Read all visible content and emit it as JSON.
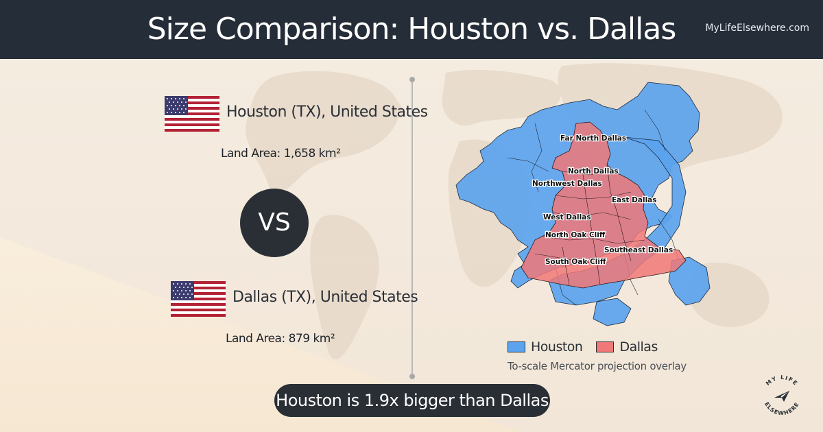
{
  "header": {
    "title": "Size Comparison: Houston vs. Dallas",
    "site": "MyLifeElsewhere.com"
  },
  "cities": [
    {
      "name": "Houston (TX), United States",
      "land_area": "Land Area: 1,658 km²",
      "flag": "us-flag-icon",
      "color": "#5ba3ee"
    },
    {
      "name": "Dallas (TX), United States",
      "land_area": "Land Area: 879 km²",
      "flag": "us-flag-icon",
      "color": "#f07878"
    }
  ],
  "vs_label": "VS",
  "map": {
    "districts": [
      "Far North Dallas",
      "North Dallas",
      "Northwest Dallas",
      "East Dallas",
      "West Dallas",
      "North Oak Cliff",
      "Southeast Dallas",
      "South Oak Cliff"
    ]
  },
  "legend": {
    "items": [
      {
        "label": "Houston",
        "color": "#5ba3ee"
      },
      {
        "label": "Dallas",
        "color": "#f07878"
      }
    ],
    "note": "To-scale Mercator projection overlay"
  },
  "summary": "Houston is 1.9x bigger than Dallas",
  "logo": {
    "text": "MY LIFE ELSEWHERE",
    "icon": "paper-plane-icon"
  }
}
